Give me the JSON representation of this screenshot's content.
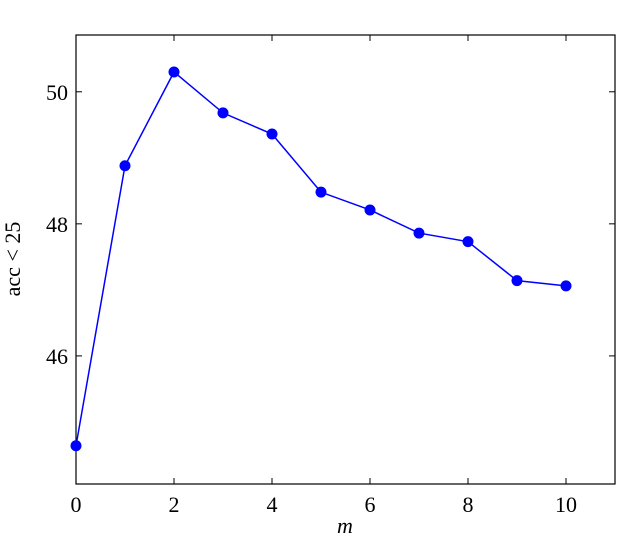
{
  "chart_data": {
    "type": "line",
    "x_label": "m",
    "y_label": "acc < 25",
    "x": [
      0,
      1,
      2,
      3,
      4,
      5,
      6,
      7,
      8,
      9,
      10
    ],
    "series": [
      {
        "color": "#0000ff",
        "values": [
          44.64,
          48.88,
          50.3,
          49.68,
          49.36,
          48.48,
          48.21,
          47.86,
          47.73,
          47.14,
          47.06
        ]
      }
    ],
    "xlim": [
      0,
      11
    ],
    "ylim": [
      44.06,
      50.86
    ],
    "xticks": [
      0,
      2,
      4,
      6,
      8,
      10
    ],
    "yticks": [
      46,
      48,
      50
    ]
  }
}
